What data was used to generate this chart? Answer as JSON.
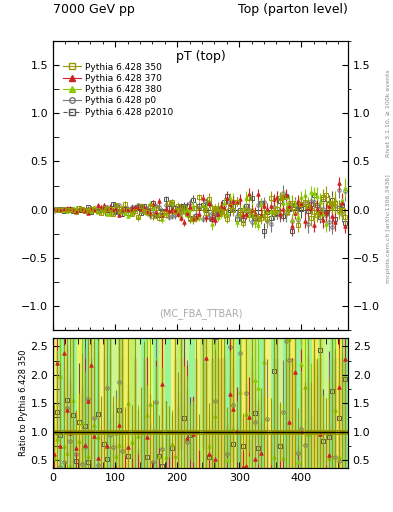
{
  "title_left": "7000 GeV pp",
  "title_right": "Top (parton level)",
  "plot_title": "pT (top)",
  "ylabel_ratio": "Ratio to Pythia 6.428 350",
  "watermark": "(MC_FBA_TTBAR)",
  "right_label_top": "Rivet 3.1.10, ≥ 100k events",
  "right_label_bot": "mcplots.cern.ch [arXiv:1306.3436]",
  "xlim": [
    0,
    475
  ],
  "ylim_main": [
    -1.25,
    1.75
  ],
  "ylim_ratio": [
    0.35,
    2.65
  ],
  "yticks_main": [
    -1.0,
    -0.5,
    0.0,
    0.5,
    1.0,
    1.5
  ],
  "yticks_ratio": [
    0.5,
    1.0,
    1.5,
    2.0,
    2.5
  ],
  "xticks": [
    0,
    100,
    200,
    300,
    400
  ],
  "n_points": 95,
  "series": [
    {
      "label": "Pythia 6.428 350",
      "color": "#999900",
      "marker": "s",
      "linestyle": "-",
      "filled": false
    },
    {
      "label": "Pythia 6.428 370",
      "color": "#cc2222",
      "marker": "^",
      "linestyle": "-",
      "filled": true
    },
    {
      "label": "Pythia 6.428 380",
      "color": "#88cc00",
      "marker": "^",
      "linestyle": "-",
      "filled": true
    },
    {
      "label": "Pythia 6.428 p0",
      "color": "#777777",
      "marker": "o",
      "linestyle": "-",
      "filled": false
    },
    {
      "label": "Pythia 6.428 p2010",
      "color": "#555555",
      "marker": "s",
      "linestyle": "--",
      "filled": false
    }
  ],
  "bg_green": "#44ee44",
  "bg_yellow": "#eeee44",
  "bg_lime": "#aaee44",
  "seed": 7
}
